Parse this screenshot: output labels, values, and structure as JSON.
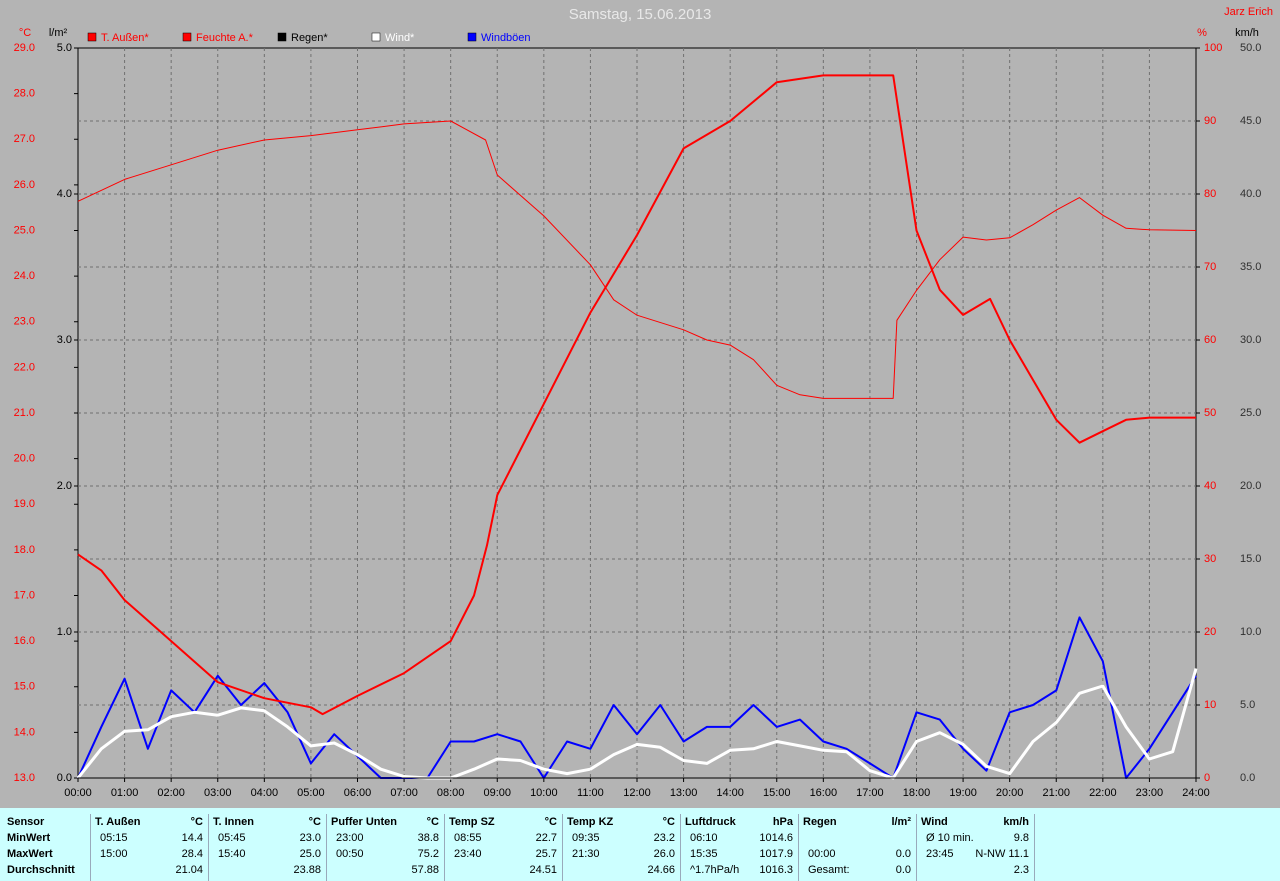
{
  "chart_data": {
    "type": "line",
    "title": "Samstag, 15.06.2013",
    "author": "Jarz Erich",
    "ylabel": "°C",
    "y3label": "l/m²",
    "y2label": "%",
    "y4label": "km/h",
    "xlim": [
      0,
      24
    ],
    "xticks": [
      {
        "value": 0,
        "label": "00:00"
      },
      {
        "value": 1,
        "label": "01:00"
      },
      {
        "value": 2,
        "label": "02:00"
      },
      {
        "value": 3,
        "label": "03:00"
      },
      {
        "value": 4,
        "label": "04:00"
      },
      {
        "value": 5,
        "label": "05:00"
      },
      {
        "value": 6,
        "label": "06:00"
      },
      {
        "value": 7,
        "label": "07:00"
      },
      {
        "value": 8,
        "label": "08:00"
      },
      {
        "value": 9,
        "label": "09:00"
      },
      {
        "value": 10,
        "label": "10:00"
      },
      {
        "value": 11,
        "label": "11:00"
      },
      {
        "value": 12,
        "label": "12:00"
      },
      {
        "value": 13,
        "label": "13:00"
      },
      {
        "value": 14,
        "label": "14:00"
      },
      {
        "value": 15,
        "label": "15:00"
      },
      {
        "value": 16,
        "label": "16:00"
      },
      {
        "value": 17,
        "label": "17:00"
      },
      {
        "value": 18,
        "label": "18:00"
      },
      {
        "value": 19,
        "label": "19:00"
      },
      {
        "value": 20,
        "label": "20:00"
      },
      {
        "value": 21,
        "label": "21:00"
      },
      {
        "value": 22,
        "label": "22:00"
      },
      {
        "value": 23,
        "label": "23:00"
      },
      {
        "value": 24,
        "label": "24:00"
      }
    ],
    "ylim": [
      13,
      29
    ],
    "yticks": [
      {
        "value": 13,
        "label": "13.0"
      },
      {
        "value": 14,
        "label": "14.0"
      },
      {
        "value": 15,
        "label": "15.0"
      },
      {
        "value": 16,
        "label": "16.0"
      },
      {
        "value": 17,
        "label": "17.0"
      },
      {
        "value": 18,
        "label": "18.0"
      },
      {
        "value": 19,
        "label": "19.0"
      },
      {
        "value": 20,
        "label": "20.0"
      },
      {
        "value": 21,
        "label": "21.0"
      },
      {
        "value": 22,
        "label": "22.0"
      },
      {
        "value": 23,
        "label": "23.0"
      },
      {
        "value": 24,
        "label": "24.0"
      },
      {
        "value": 25,
        "label": "25.0"
      },
      {
        "value": 26,
        "label": "26.0"
      },
      {
        "value": 27,
        "label": "27.0"
      },
      {
        "value": 28,
        "label": "28.0"
      },
      {
        "value": 29,
        "label": "29.0"
      }
    ],
    "y3lim": [
      0,
      5
    ],
    "y3ticks": [
      {
        "value": 0,
        "label": "0.0"
      },
      {
        "value": 1,
        "label": "1.0"
      },
      {
        "value": 2,
        "label": "2.0"
      },
      {
        "value": 3,
        "label": "3.0"
      },
      {
        "value": 4,
        "label": "4.0"
      },
      {
        "value": 5,
        "label": "5.0"
      }
    ],
    "y2lim": [
      0,
      100
    ],
    "y2ticks": [
      0,
      10,
      20,
      30,
      40,
      50,
      60,
      70,
      80,
      90,
      100
    ],
    "y4lim": [
      0,
      50
    ],
    "y4ticks": [
      {
        "value": 0,
        "label": "0.0"
      },
      {
        "value": 5,
        "label": "5.0"
      },
      {
        "value": 10,
        "label": "10.0"
      },
      {
        "value": 15,
        "label": "15.0"
      },
      {
        "value": 20,
        "label": "20.0"
      },
      {
        "value": 25,
        "label": "25.0"
      },
      {
        "value": 30,
        "label": "30.0"
      },
      {
        "value": 35,
        "label": "35.0"
      },
      {
        "value": 40,
        "label": "40.0"
      },
      {
        "value": 45,
        "label": "45.0"
      },
      {
        "value": 50,
        "label": "50.0"
      }
    ],
    "grid": true,
    "series": [
      {
        "name": "T. Außen*",
        "color": "#ff0000",
        "axis": "y",
        "width": 2,
        "x": [
          0,
          0.5,
          1,
          2,
          3,
          4,
          5,
          5.25,
          6,
          7,
          8,
          8.5,
          8.78,
          9,
          10,
          11,
          12,
          13,
          14,
          15,
          16,
          17,
          17.5,
          18,
          18.5,
          19,
          19.58,
          20,
          21,
          21.5,
          22,
          22.5,
          23,
          24
        ],
        "values": [
          17.9,
          17.55,
          16.9,
          16.0,
          15.1,
          14.75,
          14.55,
          14.4,
          14.8,
          15.3,
          16.0,
          17.0,
          18.1,
          19.2,
          21.2,
          23.2,
          24.9,
          26.8,
          27.4,
          28.25,
          28.4,
          28.4,
          28.4,
          25.0,
          23.7,
          23.15,
          23.5,
          22.6,
          20.85,
          20.35,
          20.6,
          20.85,
          20.9,
          20.9
        ]
      },
      {
        "name": "Feuchte A.*",
        "color": "#ff0000",
        "axis": "y2",
        "width": 1,
        "x": [
          0,
          1,
          2,
          3,
          4,
          5,
          6,
          7,
          8,
          8.75,
          9,
          10,
          11,
          11.5,
          12,
          13,
          13.5,
          14,
          14.5,
          15,
          15.5,
          16,
          17,
          17.5,
          17.58,
          18,
          18.5,
          19,
          19.5,
          20,
          20.5,
          21,
          21.5,
          22,
          22.5,
          23,
          24
        ],
        "values": [
          79,
          82,
          84,
          86,
          87.4,
          88,
          88.8,
          89.6,
          90,
          87.4,
          82.6,
          77,
          70.3,
          65.5,
          63.4,
          61.4,
          60,
          59.3,
          57.3,
          53.8,
          52.5,
          52,
          52,
          52,
          62.7,
          66.8,
          71,
          74.1,
          73.7,
          74,
          75.8,
          77.8,
          79.5,
          77.1,
          75.3,
          75.1,
          75
        ]
      },
      {
        "name": "Regen*",
        "color": "#000000",
        "axis": "y3",
        "width": 1,
        "x": [
          0,
          24
        ],
        "values": [
          0,
          0
        ]
      },
      {
        "name": "Wind*",
        "color": "#ffffff",
        "axis": "y4",
        "width": 3,
        "x": [
          0,
          0.5,
          1,
          1.5,
          2,
          2.5,
          3,
          3.5,
          4,
          4.5,
          5,
          5.5,
          6,
          6.5,
          7,
          7.5,
          8,
          8.5,
          9,
          9.5,
          10,
          10.5,
          11,
          11.5,
          12,
          12.5,
          13,
          13.5,
          14,
          14.5,
          15,
          15.5,
          16,
          16.5,
          17,
          17.5,
          18,
          18.5,
          19,
          19.5,
          20,
          20.5,
          21,
          21.5,
          22,
          22.5,
          23,
          23.5,
          24
        ],
        "values": [
          0,
          2,
          3.2,
          3.3,
          4.2,
          4.5,
          4.3,
          4.8,
          4.6,
          3.5,
          2.2,
          2.4,
          1.6,
          0.6,
          0.1,
          0,
          0,
          0.6,
          1.3,
          1.2,
          0.6,
          0.3,
          0.6,
          1.6,
          2.3,
          2.1,
          1.2,
          1.0,
          1.9,
          2.0,
          2.5,
          2.2,
          1.9,
          1.8,
          0.5,
          0,
          2.5,
          3.1,
          2.3,
          0.8,
          0.3,
          2.5,
          3.8,
          5.8,
          6.3,
          3.5,
          1.3,
          1.8,
          7.5
        ]
      },
      {
        "name": "Windböen",
        "color": "#0000ff",
        "axis": "y4",
        "width": 2,
        "x": [
          0,
          0.5,
          1,
          1.5,
          2,
          2.5,
          3,
          3.5,
          4,
          4.5,
          5,
          5.5,
          6,
          6.5,
          7,
          7.5,
          8,
          8.5,
          9,
          9.5,
          10,
          10.5,
          11,
          11.5,
          12,
          12.5,
          13,
          13.5,
          14,
          14.5,
          15,
          15.5,
          16,
          16.5,
          17,
          17.5,
          18,
          18.5,
          19,
          19.5,
          20,
          20.5,
          21,
          21.5,
          22,
          22.5,
          23,
          23.5,
          24
        ],
        "values": [
          0,
          3.5,
          6.8,
          2,
          6,
          4.5,
          7,
          5,
          6.5,
          4.5,
          1,
          3,
          1.5,
          0,
          0,
          0,
          2.5,
          2.5,
          3,
          2.5,
          0,
          2.5,
          2,
          5,
          3,
          5,
          2.5,
          3.5,
          3.5,
          5,
          3.5,
          4,
          2.5,
          2,
          1,
          0,
          4.5,
          4,
          2,
          0.5,
          4.5,
          5,
          6,
          11,
          8,
          0,
          2,
          4.5,
          7
        ]
      }
    ]
  },
  "stats_table": {
    "corner": "Sensor",
    "row_labels": [
      "MinWert",
      "MaxWert",
      "Durchschnitt"
    ],
    "columns": [
      {
        "header": "T. Außen",
        "unit": "°C",
        "rows": [
          {
            "time": "05:15",
            "value": "14.4"
          },
          {
            "time": "15:00",
            "value": "28.4"
          },
          {
            "value": "21.04"
          }
        ]
      },
      {
        "header": "T. Innen",
        "unit": "°C",
        "rows": [
          {
            "time": "05:45",
            "value": "23.0"
          },
          {
            "time": "15:40",
            "value": "25.0"
          },
          {
            "value": "23.88"
          }
        ]
      },
      {
        "header": "Puffer Unten",
        "unit": "°C",
        "rows": [
          {
            "time": "23:00",
            "value": "38.8"
          },
          {
            "time": "00:50",
            "value": "75.2"
          },
          {
            "value": "57.88"
          }
        ]
      },
      {
        "header": "Temp SZ",
        "unit": "°C",
        "rows": [
          {
            "time": "08:55",
            "value": "22.7"
          },
          {
            "time": "23:40",
            "value": "25.7"
          },
          {
            "value": "24.51"
          }
        ]
      },
      {
        "header": "Temp KZ",
        "unit": "°C",
        "rows": [
          {
            "time": "09:35",
            "value": "23.2"
          },
          {
            "time": "21:30",
            "value": "26.0"
          },
          {
            "value": "24.66"
          }
        ]
      },
      {
        "header": "Luftdruck",
        "unit": "hPa",
        "rows": [
          {
            "time": "06:10",
            "value": "1014.6"
          },
          {
            "time": "15:35",
            "value": "1017.9"
          },
          {
            "time": "^1.7hPa/h",
            "value": "1016.3"
          }
        ]
      },
      {
        "header": "Regen",
        "unit": "l/m²",
        "rows": [
          null,
          {
            "time": "00:00",
            "value": "0.0"
          },
          {
            "time": "Gesamt:",
            "value": "0.0"
          }
        ]
      },
      {
        "header": "Wind",
        "unit": "km/h",
        "rows": [
          {
            "time": "Ø 10 min.",
            "value": "9.8"
          },
          {
            "time": "23:45",
            "value": "N-NW 11.1"
          },
          {
            "value": "2.3"
          }
        ]
      }
    ]
  }
}
